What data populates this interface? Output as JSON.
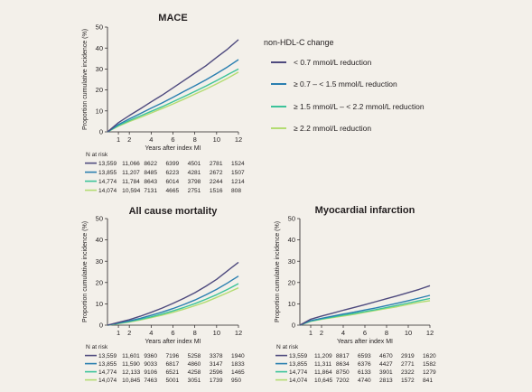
{
  "legend": {
    "title": "non-HDL-C change",
    "entries": [
      {
        "label": "< 0.7 mmol/L reduction",
        "color": "#4e4a7e"
      },
      {
        "label": "≥ 0.7 – < 1.5 mmol/L reduction",
        "color": "#2a7fb0"
      },
      {
        "label": "≥ 1.5 mmol/L – < 2.2 mmol/L reduction",
        "color": "#3cc39a"
      },
      {
        "label": "≥ 2.2 mmol/L reduction",
        "color": "#b3dc72"
      }
    ]
  },
  "chart_data": [
    {
      "type": "line",
      "title": "MACE",
      "xlabel": "Years after index MI",
      "ylabel": "Proportion cumulative incidence (%)",
      "xlim": [
        0,
        12
      ],
      "ylim": [
        0,
        50
      ],
      "xticks": [
        1,
        2,
        4,
        6,
        8,
        10,
        12
      ],
      "yticks": [
        0,
        10,
        20,
        30,
        40,
        50
      ],
      "x": [
        0,
        1,
        2,
        3,
        4,
        5,
        6,
        7,
        8,
        9,
        10,
        11,
        12
      ],
      "series": [
        {
          "name": "< 0.7 mmol/L reduction",
          "values": [
            0,
            4.4,
            7.8,
            11,
            14.3,
            17.5,
            21,
            24.5,
            28,
            31.5,
            35.5,
            39.5,
            44
          ]
        },
        {
          "name": "≥ 0.7 – < 1.5 mmol/L reduction",
          "values": [
            0,
            3.5,
            6.2,
            8.7,
            11.3,
            13.8,
            16.5,
            19.3,
            22,
            24.8,
            27.8,
            31,
            34.5
          ]
        },
        {
          "name": "≥ 1.5 mmol/L – < 2.2 mmol/L reduction",
          "values": [
            0,
            3,
            5.4,
            7.6,
            9.8,
            12,
            14.4,
            16.8,
            19.3,
            21.8,
            24.5,
            27.3,
            30
          ]
        },
        {
          "name": "≥ 2.2 mmol/L reduction",
          "values": [
            0,
            2.7,
            4.9,
            6.9,
            9,
            11.1,
            13.3,
            15.6,
            18,
            20.4,
            22.9,
            25.6,
            28.5
          ]
        }
      ],
      "risk_table": {
        "header": "N at risk",
        "rows": [
          [
            "13,559",
            "11,066",
            "8622",
            "6399",
            "4501",
            "2781",
            "1524"
          ],
          [
            "13,855",
            "11,207",
            "8485",
            "6223",
            "4281",
            "2672",
            "1507"
          ],
          [
            "14,774",
            "11,784",
            "8643",
            "6014",
            "3798",
            "2244",
            "1214"
          ],
          [
            "14,074",
            "10,594",
            "7131",
            "4665",
            "2751",
            "1516",
            "808"
          ]
        ]
      }
    },
    {
      "type": "line",
      "title": "All cause mortality",
      "xlabel": "Years after index MI",
      "ylabel": "Proportion cumulative incidence (%)",
      "xlim": [
        0,
        12
      ],
      "ylim": [
        0,
        50
      ],
      "xticks": [
        1,
        2,
        4,
        6,
        8,
        10,
        12
      ],
      "yticks": [
        0,
        10,
        20,
        30,
        40,
        50
      ],
      "x": [
        0,
        1,
        2,
        3,
        4,
        5,
        6,
        7,
        8,
        9,
        10,
        11,
        12
      ],
      "series": [
        {
          "name": "< 0.7 mmol/L reduction",
          "values": [
            0,
            1.3,
            2.6,
            4.2,
            6,
            8,
            10.2,
            12.6,
            15.2,
            18.2,
            21.5,
            25.5,
            29.5
          ]
        },
        {
          "name": "≥ 0.7 – < 1.5 mmol/L reduction",
          "values": [
            0,
            1,
            2,
            3.2,
            4.6,
            6.1,
            7.8,
            9.7,
            11.8,
            14.2,
            16.8,
            19.8,
            23
          ]
        },
        {
          "name": "≥ 1.5 mmol/L – < 2.2 mmol/L reduction",
          "values": [
            0,
            0.8,
            1.7,
            2.7,
            3.9,
            5.2,
            6.7,
            8.3,
            10.1,
            12.1,
            14.3,
            16.8,
            19.5
          ]
        },
        {
          "name": "≥ 2.2 mmol/L reduction",
          "values": [
            0,
            0.7,
            1.5,
            2.4,
            3.5,
            4.7,
            6,
            7.5,
            9.1,
            10.9,
            13,
            15.2,
            17.5
          ]
        }
      ],
      "risk_table": {
        "header": "N at risk",
        "rows": [
          [
            "13,559",
            "11,601",
            "9360",
            "7196",
            "5258",
            "3378",
            "1940"
          ],
          [
            "13,855",
            "11,590",
            "9033",
            "6817",
            "4860",
            "3147",
            "1833"
          ],
          [
            "14,774",
            "12,133",
            "9106",
            "6521",
            "4258",
            "2596",
            "1465"
          ],
          [
            "14,074",
            "10,845",
            "7463",
            "5001",
            "3051",
            "1739",
            "950"
          ]
        ]
      }
    },
    {
      "type": "line",
      "title": "Myocardial infarction",
      "xlabel": "Years after index MI",
      "ylabel": "Proportion cumulative incidence (%)",
      "xlim": [
        0,
        12
      ],
      "ylim": [
        0,
        50
      ],
      "xticks": [
        1,
        2,
        4,
        6,
        8,
        10,
        12
      ],
      "yticks": [
        0,
        10,
        20,
        30,
        40,
        50
      ],
      "x": [
        0,
        1,
        2,
        3,
        4,
        5,
        6,
        7,
        8,
        9,
        10,
        11,
        12
      ],
      "series": [
        {
          "name": "< 0.7 mmol/L reduction",
          "values": [
            0,
            2.8,
            4.3,
            5.6,
            7,
            8.3,
            9.6,
            11,
            12.4,
            13.8,
            15.3,
            16.8,
            18.5
          ]
        },
        {
          "name": "≥ 0.7 – < 1.5 mmol/L reduction",
          "values": [
            0,
            2.1,
            3.2,
            4.2,
            5.2,
            6.1,
            7.1,
            8.1,
            9.2,
            10.3,
            11.5,
            12.7,
            14
          ]
        },
        {
          "name": "≥ 1.5 mmol/L – < 2.2 mmol/L reduction",
          "values": [
            0,
            1.9,
            2.9,
            3.8,
            4.7,
            5.5,
            6.4,
            7.3,
            8.3,
            9.3,
            10.4,
            11.5,
            12.5
          ]
        },
        {
          "name": "≥ 2.2 mmol/L reduction",
          "values": [
            0,
            1.8,
            2.7,
            3.5,
            4.3,
            5.1,
            6,
            6.9,
            7.8,
            8.7,
            9.7,
            10.7,
            11.5
          ]
        }
      ],
      "risk_table": {
        "header": "N at risk",
        "rows": [
          [
            "13,559",
            "11,209",
            "8817",
            "6593",
            "4670",
            "2919",
            "1620"
          ],
          [
            "13,855",
            "11,311",
            "8634",
            "6376",
            "4427",
            "2771",
            "1582"
          ],
          [
            "14,774",
            "11,864",
            "8750",
            "6133",
            "3901",
            "2322",
            "1279"
          ],
          [
            "14,074",
            "10,645",
            "7202",
            "4740",
            "2813",
            "1572",
            "841"
          ]
        ]
      }
    }
  ]
}
